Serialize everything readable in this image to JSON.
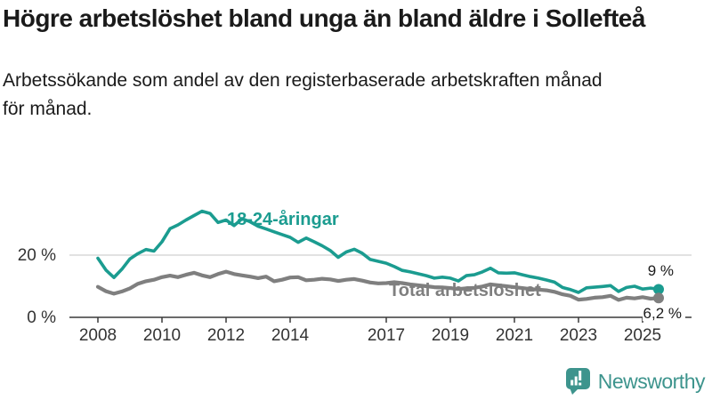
{
  "header": {
    "title": "Högre arbetslöshet bland unga än bland äldre i Sollefteå",
    "subtitle": "Arbetssökande som andel av den registerbaserade arbetskraften månad för månad."
  },
  "chart_data": {
    "type": "line",
    "unit": "%",
    "x_start": 2008,
    "x_step": 0.25,
    "x_ticks": [
      2008,
      2010,
      2012,
      2014,
      2017,
      2019,
      2021,
      2023,
      2025
    ],
    "y_axis": {
      "ticks": [
        {
          "value": 0,
          "label": "0 %"
        },
        {
          "value": 20,
          "label": "20 %"
        }
      ],
      "gridline_values": [
        20
      ]
    },
    "grid": "single horizontal gridline at 20 %, x-axis baseline at 0 %",
    "legend_position": "labels drawn next to lines",
    "series": [
      {
        "key": "youth",
        "name": "18-24-åringar",
        "color": "#1b9c90",
        "end_label": "9 %",
        "end_value": 9,
        "values": [
          19.0,
          15.2,
          12.8,
          15.5,
          18.8,
          20.5,
          21.8,
          21.3,
          24.3,
          28.5,
          29.7,
          31.3,
          32.7,
          34.1,
          33.4,
          30.5,
          31.3,
          29.5,
          31.7,
          30.7,
          29.3,
          28.4,
          27.5,
          26.6,
          25.7,
          24.1,
          25.5,
          24.3,
          23.0,
          21.5,
          19.3,
          21.0,
          21.9,
          20.6,
          18.6,
          18.0,
          17.4,
          16.3,
          15.1,
          14.6,
          14.0,
          13.4,
          12.6,
          12.9,
          12.6,
          11.7,
          13.4,
          13.7,
          14.6,
          15.8,
          14.3,
          14.2,
          14.3,
          13.7,
          13.1,
          12.6,
          12.0,
          11.3,
          9.6,
          8.9,
          8.0,
          9.5,
          9.7,
          9.9,
          10.2,
          8.3,
          9.6,
          10.0,
          9.1,
          9.4,
          9.0
        ]
      },
      {
        "key": "total",
        "name": "Total arbetslöshet",
        "color": "#7f7f7f",
        "end_label": "6,2 %",
        "end_value": 6.2,
        "values": [
          9.8,
          8.4,
          7.6,
          8.3,
          9.3,
          10.8,
          11.6,
          12.1,
          12.9,
          13.4,
          12.9,
          13.7,
          14.3,
          13.5,
          12.9,
          13.9,
          14.7,
          13.9,
          13.5,
          13.1,
          12.6,
          13.1,
          11.6,
          12.1,
          12.8,
          12.9,
          11.9,
          12.1,
          12.4,
          12.2,
          11.7,
          12.1,
          12.3,
          11.8,
          11.2,
          10.9,
          11.0,
          11.3,
          11.0,
          10.6,
          10.3,
          10.0,
          9.7,
          9.6,
          9.4,
          9.1,
          9.3,
          9.5,
          9.9,
          10.6,
          10.3,
          10.0,
          9.7,
          9.4,
          9.1,
          8.9,
          8.7,
          8.2,
          7.4,
          6.9,
          5.7,
          5.9,
          6.3,
          6.5,
          6.9,
          5.6,
          6.3,
          6.1,
          6.5,
          6.0,
          6.2
        ]
      }
    ]
  },
  "footer": {
    "brand": "Newsworthy",
    "brand_color": "#3d948d",
    "icon": "newsworthy-bar-chart-bubble-icon"
  }
}
